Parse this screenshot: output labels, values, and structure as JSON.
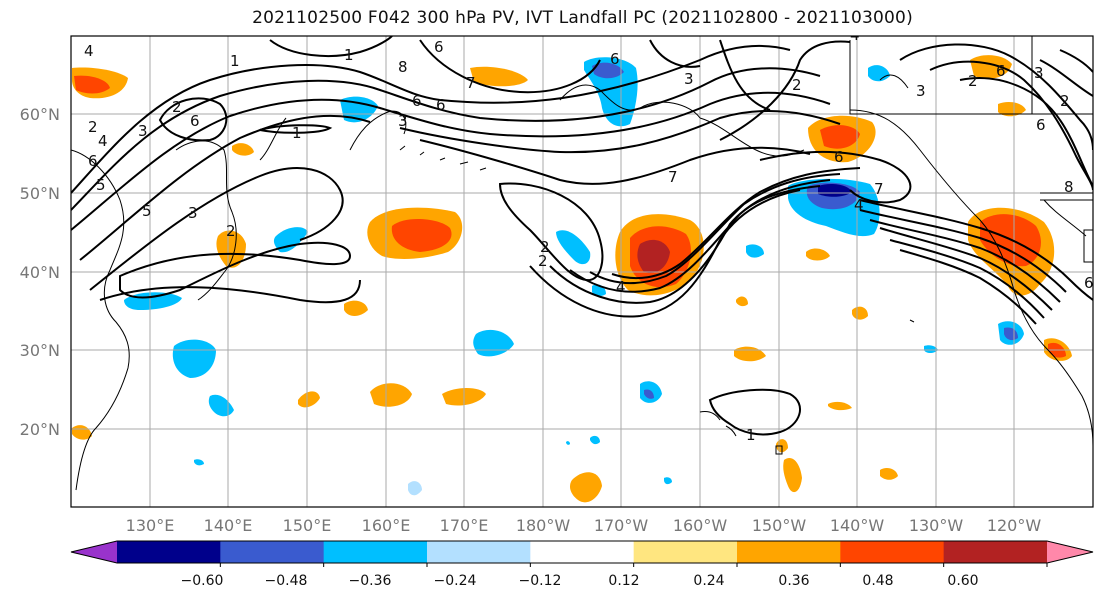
{
  "title": "2021102500 F042 300 hPa PV, IVT Landfall PC (2021102800 - 2021103000)",
  "lat_labels": [
    "60°N",
    "50°N",
    "40°N",
    "30°N",
    "20°N"
  ],
  "lon_labels": [
    "130°E",
    "140°E",
    "150°E",
    "160°E",
    "170°E",
    "180°W",
    "170°W",
    "160°W",
    "150°W",
    "140°W",
    "130°W",
    "120°W"
  ],
  "colorbar": {
    "ticks": [
      "−0.60",
      "−0.48",
      "−0.36",
      "−0.24",
      "−0.12",
      "0.12",
      "0.24",
      "0.36",
      "0.48",
      "0.60"
    ],
    "colors": [
      "#9933cc",
      "#00008b",
      "#3a5bcf",
      "#00bfff",
      "#b3e0ff",
      "#ffffff",
      "#ffe680",
      "#ffa500",
      "#ff4500",
      "#b22222",
      "#ff88aa"
    ]
  },
  "contour_labels": [
    "4",
    "1",
    "7",
    "6",
    "2",
    "3",
    "2",
    "6",
    "4",
    "6",
    "5",
    "5",
    "2",
    "3",
    "6",
    "3",
    "1",
    "6",
    "6",
    "2",
    "8",
    "3",
    "2",
    "7",
    "4",
    "2",
    "1",
    "4",
    "3",
    "2",
    "6",
    "3",
    "7",
    "4",
    "6",
    "8",
    "6",
    "1",
    "6",
    "2"
  ]
}
